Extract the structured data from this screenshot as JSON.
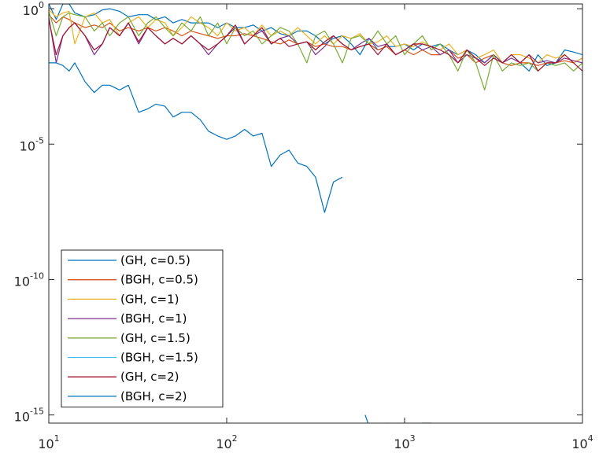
{
  "chart_data": {
    "type": "line",
    "title": "",
    "xlabel": "",
    "ylabel": "",
    "x_scale": "log",
    "y_scale": "log",
    "xlim": [
      10,
      10000
    ],
    "ylim": [
      5e-16,
      1.5
    ],
    "x_ticks": [
      {
        "base": "10",
        "exp": "1"
      },
      {
        "base": "10",
        "exp": "2"
      },
      {
        "base": "10",
        "exp": "3"
      },
      {
        "base": "10",
        "exp": "4"
      }
    ],
    "y_ticks": [
      {
        "base": "10",
        "exp": "0"
      },
      {
        "base": "10",
        "exp": "-5"
      },
      {
        "base": "10",
        "exp": "-10"
      },
      {
        "base": "10",
        "exp": "-15"
      }
    ],
    "grid": false,
    "legend_position": "bottom-left",
    "series": [
      {
        "name": "(GH, c=0.5)",
        "color": "#0072BD",
        "x": [
          10,
          11,
          12,
          13,
          14,
          16,
          18,
          20,
          22,
          25,
          28,
          32,
          36,
          40,
          45,
          50,
          56,
          63,
          71,
          79,
          89,
          100,
          112,
          126,
          141,
          158,
          178,
          200,
          224,
          251,
          282,
          316,
          355,
          398,
          447,
          501,
          562,
          631,
          708,
          794,
          891,
          1000,
          1122,
          1259,
          1413,
          1585,
          1778,
          1995,
          2239,
          2512,
          2818,
          3162,
          3548,
          3981,
          4467,
          5012,
          5623,
          6310,
          7079,
          7943,
          8913,
          10000
        ],
        "y": [
          1.5,
          0.4,
          1.5,
          1.5,
          0.7,
          0.5,
          0.6,
          0.9,
          1.0,
          0.8,
          0.5,
          0.6,
          0.6,
          0.4,
          0.5,
          0.3,
          0.4,
          0.3,
          0.3,
          0.3,
          0.2,
          0.3,
          0.2,
          0.2,
          0.25,
          0.15,
          0.2,
          0.12,
          0.1,
          0.15,
          0.15,
          0.1,
          0.05,
          0.08,
          0.1,
          0.05,
          0.02,
          0.08,
          0.03,
          0.04,
          0.04,
          0.05,
          0.03,
          0.05,
          0.04,
          0.05,
          0.03,
          0.02,
          0.03,
          0.02,
          0.01,
          0.02,
          0.01,
          0.02,
          0.01,
          0.005,
          0.02,
          0.008,
          0.01,
          0.03,
          0.025,
          0.02
        ]
      },
      {
        "name": "(BGH, c=0.5)",
        "color": "#D95319",
        "x": [
          10,
          11,
          12,
          13,
          14,
          16,
          18,
          20,
          22,
          25,
          28,
          32,
          36,
          40,
          45,
          50,
          56,
          63,
          71,
          79,
          89,
          100,
          112,
          126,
          141,
          158,
          178,
          200,
          224,
          251,
          282,
          316,
          355,
          398,
          447,
          501,
          562,
          631,
          708,
          794,
          891,
          1000,
          1122,
          1259,
          1413,
          1585,
          1778,
          1995,
          2239,
          2512,
          2818,
          3162,
          3548,
          3981,
          4467,
          5012,
          5623,
          6310,
          7079,
          7943,
          8913,
          10000
        ],
        "y": [
          0.6,
          0.3,
          0.5,
          0.4,
          0.3,
          0.2,
          0.25,
          0.2,
          0.3,
          0.15,
          0.2,
          0.15,
          0.2,
          0.15,
          0.2,
          0.15,
          0.1,
          0.15,
          0.12,
          0.1,
          0.08,
          0.1,
          0.1,
          0.12,
          0.1,
          0.08,
          0.06,
          0.05,
          0.07,
          0.05,
          0.06,
          0.04,
          0.05,
          0.04,
          0.04,
          0.03,
          0.04,
          0.05,
          0.03,
          0.04,
          0.02,
          0.03,
          0.02,
          0.03,
          0.02,
          0.02,
          0.03,
          0.015,
          0.02,
          0.01,
          0.015,
          0.02,
          0.01,
          0.008,
          0.01,
          0.01,
          0.008,
          0.01,
          0.01,
          0.012,
          0.01,
          0.015
        ]
      },
      {
        "name": "(GH, c=1)",
        "color": "#EDB120",
        "x": [
          10,
          11,
          12,
          13,
          14,
          16,
          18,
          20,
          22,
          25,
          28,
          32,
          36,
          40,
          45,
          50,
          56,
          63,
          71,
          79,
          89,
          100,
          112,
          126,
          141,
          158,
          178,
          200,
          224,
          251,
          282,
          316,
          355,
          398,
          447,
          501,
          562,
          631,
          708,
          794,
          891,
          1000,
          1122,
          1259,
          1413,
          1585,
          1778,
          1995,
          2239,
          2512,
          2818,
          3162,
          3548,
          3981,
          4467,
          5012,
          5623,
          6310,
          7079,
          7943,
          8913,
          10000
        ],
        "y": [
          0.9,
          0.5,
          0.7,
          0.8,
          0.05,
          0.5,
          0.7,
          0.3,
          0.4,
          0.1,
          0.3,
          0.5,
          0.2,
          0.4,
          0.3,
          0.1,
          0.2,
          0.5,
          0.3,
          0.2,
          0.1,
          0.3,
          0.15,
          0.2,
          0.1,
          0.25,
          0.1,
          0.15,
          0.1,
          0.2,
          0.1,
          0.05,
          0.1,
          0.05,
          0.1,
          0.08,
          0.12,
          0.05,
          0.06,
          0.1,
          0.04,
          0.05,
          0.04,
          0.06,
          0.04,
          0.03,
          0.05,
          0.02,
          0.03,
          0.015,
          0.02,
          0.03,
          0.01,
          0.02,
          0.02,
          0.015,
          0.01,
          0.02,
          0.015,
          0.02,
          0.01,
          0.015
        ]
      },
      {
        "name": "(BGH, c=1)",
        "color": "#7E2F8E",
        "x": [
          10,
          11,
          12,
          13,
          14,
          16,
          18,
          20,
          22,
          25,
          28,
          32,
          36,
          40,
          45,
          50,
          56,
          63,
          71,
          79,
          89,
          100,
          112,
          126,
          141,
          158,
          178,
          200,
          224,
          251,
          282,
          316,
          355,
          398,
          447,
          501,
          562,
          631,
          708,
          794,
          891,
          1000,
          1122,
          1259,
          1413,
          1585,
          1778,
          1995,
          2239,
          2512,
          2818,
          3162,
          3548,
          3981,
          4467,
          5012,
          5623,
          6310,
          7079,
          7943,
          8913,
          10000
        ],
        "y": [
          0.5,
          0.01,
          0.1,
          0.2,
          0.3,
          0.1,
          0.02,
          0.05,
          0.2,
          0.1,
          0.3,
          0.05,
          0.2,
          0.1,
          0.05,
          0.08,
          0.05,
          0.1,
          0.05,
          0.02,
          0.05,
          0.1,
          0.2,
          0.05,
          0.1,
          0.15,
          0.05,
          0.08,
          0.1,
          0.05,
          0.06,
          0.02,
          0.04,
          0.1,
          0.05,
          0.03,
          0.05,
          0.08,
          0.04,
          0.05,
          0.02,
          0.03,
          0.05,
          0.03,
          0.04,
          0.02,
          0.03,
          0.01,
          0.02,
          0.015,
          0.01,
          0.02,
          0.01,
          0.015,
          0.01,
          0.02,
          0.01,
          0.012,
          0.01,
          0.015,
          0.012,
          0.01
        ]
      },
      {
        "name": "(GH, c=1.5)",
        "color": "#77AC30",
        "x": [
          10,
          11,
          12,
          13,
          14,
          16,
          18,
          20,
          22,
          25,
          28,
          32,
          36,
          40,
          45,
          50,
          56,
          63,
          71,
          79,
          89,
          100,
          112,
          126,
          141,
          158,
          178,
          200,
          224,
          251,
          282,
          316,
          355,
          398,
          447,
          501,
          562,
          631,
          708,
          794,
          891,
          1000,
          1122,
          1259,
          1413,
          1585,
          1778,
          1995,
          2239,
          2512,
          2818,
          3162,
          3548,
          3981,
          4467,
          5012,
          5623,
          6310,
          7079,
          7943,
          8913,
          10000
        ],
        "y": [
          0.8,
          0.1,
          0.5,
          0.7,
          0.6,
          0.5,
          0.15,
          0.3,
          0.1,
          0.3,
          0.5,
          0.1,
          0.3,
          0.5,
          0.2,
          0.1,
          0.3,
          0.15,
          0.5,
          0.1,
          0.3,
          0.05,
          0.2,
          0.1,
          0.15,
          0.05,
          0.1,
          0.2,
          0.15,
          0.05,
          0.01,
          0.1,
          0.15,
          0.05,
          0.01,
          0.08,
          0.1,
          0.05,
          0.15,
          0.05,
          0.1,
          0.02,
          0.05,
          0.1,
          0.03,
          0.05,
          0.02,
          0.005,
          0.03,
          0.01,
          0.001,
          0.02,
          0.005,
          0.01,
          0.008,
          0.01,
          0.005,
          0.01,
          0.008,
          0.01,
          0.005,
          0.01
        ]
      },
      {
        "name": "(BGH, c=1.5)",
        "color": "#4DBEEE",
        "x": [],
        "y": []
      },
      {
        "name": "(GH, c=2)",
        "color": "#A2142F",
        "x": [
          10,
          11,
          12,
          13,
          14,
          16,
          18,
          20,
          22,
          25,
          28,
          32,
          36,
          40,
          45,
          50,
          56,
          63,
          71,
          79,
          89,
          100,
          112,
          126,
          141,
          158,
          178,
          200,
          224,
          251,
          282,
          316,
          355,
          398,
          447,
          501,
          562,
          631,
          708,
          794,
          891,
          1000,
          1122,
          1259,
          1413,
          1585,
          1778,
          1995,
          2239,
          2512,
          2818,
          3162,
          3548,
          3981,
          4467,
          5012,
          5623,
          6310,
          7079,
          7943,
          8913,
          10000
        ],
        "y": [
          0.4,
          0.02,
          0.1,
          0.2,
          0.3,
          0.1,
          0.03,
          0.05,
          0.2,
          0.1,
          0.3,
          0.06,
          0.2,
          0.1,
          0.05,
          0.08,
          0.05,
          0.1,
          0.05,
          0.03,
          0.05,
          0.1,
          0.25,
          0.05,
          0.1,
          0.2,
          0.05,
          0.08,
          0.04,
          0.05,
          0.06,
          0.03,
          0.06,
          0.1,
          0.05,
          0.03,
          0.04,
          0.05,
          0.02,
          0.05,
          0.02,
          0.03,
          0.05,
          0.05,
          0.04,
          0.03,
          0.02,
          0.01,
          0.03,
          0.015,
          0.008,
          0.015,
          0.01,
          0.02,
          0.01,
          0.02,
          0.005,
          0.01,
          0.01,
          0.02,
          0.01,
          0.005
        ]
      },
      {
        "name": "(BGH, c=2)",
        "color": "#0072BD",
        "x": [
          10,
          11,
          12,
          13,
          14,
          16,
          18,
          20,
          22,
          25,
          28,
          32,
          36,
          40,
          45,
          50,
          56,
          63,
          71,
          79,
          89,
          100,
          112,
          126,
          141,
          158,
          178,
          200,
          224,
          251,
          282,
          316,
          355,
          398,
          447,
          null,
          600,
          640,
          680,
          708,
          750,
          794,
          850,
          891,
          950,
          1000,
          1122,
          1259,
          1413,
          null,
          2600,
          2818,
          3162,
          3548,
          3981,
          4467,
          5012,
          5623,
          6310,
          7079,
          7943,
          8913,
          10000
        ],
        "y": [
          0.01,
          0.01,
          0.008,
          0.005,
          0.01,
          0.002,
          0.0008,
          0.0015,
          0.0015,
          0.001,
          0.0015,
          0.00015,
          0.0002,
          0.0003,
          0.00025,
          0.0001,
          0.00015,
          0.00015,
          8e-05,
          3e-05,
          2e-05,
          1.5e-05,
          2e-05,
          3.5e-05,
          2e-05,
          2.5e-05,
          1.5e-06,
          4e-06,
          6e-06,
          2e-06,
          1.5e-06,
          6e-07,
          3e-08,
          4e-07,
          6e-07,
          null,
          1e-15,
          3e-16,
          2e-16,
          1.5e-16,
          8e-17,
          5e-16,
          1e-16,
          2e-16,
          5e-16,
          1e-16,
          3e-16,
          5e-16,
          5e-16,
          null,
          3e-16,
          3e-16,
          3e-16,
          3e-16,
          3e-16,
          3e-16,
          3e-16,
          3e-16,
          3e-16,
          3e-16,
          3e-16,
          3e-16,
          5e-16
        ]
      }
    ]
  }
}
